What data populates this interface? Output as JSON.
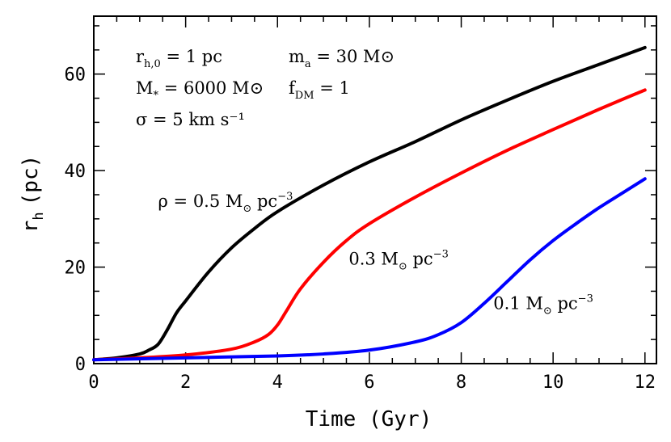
{
  "chart_data": {
    "type": "line",
    "xlabel": "Time (Gyr)",
    "ylabel": {
      "main": "r",
      "sub": "h",
      "unit": "(pc)"
    },
    "xlim": [
      0,
      12.25
    ],
    "ylim": [
      0,
      72
    ],
    "x_ticks": [
      "0",
      "2",
      "4",
      "6",
      "8",
      "10",
      "12"
    ],
    "y_ticks": [
      "0",
      "20",
      "40",
      "60"
    ],
    "grid": false,
    "parameters": [
      {
        "main": "r",
        "sub": "h,0",
        "rest": " = 1 pc"
      },
      {
        "main": "M",
        "sub": "*",
        "rest": " = 6000 M⊙"
      },
      {
        "main": "σ",
        "sub": "",
        "rest": " = 5 km s⁻¹"
      },
      {
        "main": "m",
        "sub": "a",
        "rest": " = 30 M⊙"
      },
      {
        "main": "f",
        "sub": "DM",
        "rest": " = 1"
      }
    ],
    "series": [
      {
        "name": "ρ = 0.5 M⊙ pc⁻³",
        "color": "#000000",
        "x": [
          0,
          0.5,
          1.0,
          1.2,
          1.4,
          1.6,
          1.8,
          2.0,
          2.5,
          3.0,
          3.5,
          4.0,
          5.0,
          6.0,
          7.0,
          8.0,
          9.0,
          10.0,
          11.0,
          12.0
        ],
        "y": [
          0.8,
          1.2,
          2.0,
          2.8,
          4.0,
          7.0,
          10.5,
          13.0,
          19.0,
          24.0,
          28.0,
          31.5,
          37.0,
          41.8,
          46.0,
          50.5,
          54.6,
          58.5,
          62.0,
          65.5
        ]
      },
      {
        "name": "0.3 M⊙ pc⁻³",
        "color": "#ff0000",
        "x": [
          0,
          1.0,
          2.0,
          3.0,
          3.5,
          3.8,
          4.0,
          4.2,
          4.5,
          5.0,
          5.5,
          6.0,
          7.0,
          8.0,
          9.0,
          10.0,
          11.0,
          12.0
        ],
        "y": [
          0.8,
          1.2,
          1.8,
          3.0,
          4.5,
          6.0,
          8.0,
          11.0,
          15.5,
          21.0,
          25.5,
          29.0,
          34.5,
          39.5,
          44.2,
          48.5,
          52.7,
          56.7
        ]
      },
      {
        "name": "0.1 M⊙ pc⁻³",
        "color": "#0000ff",
        "x": [
          0,
          2.0,
          4.0,
          5.0,
          6.0,
          7.0,
          7.5,
          8.0,
          8.5,
          9.0,
          9.5,
          10.0,
          10.5,
          11.0,
          11.5,
          12.0
        ],
        "y": [
          0.8,
          1.2,
          1.6,
          2.0,
          2.8,
          4.5,
          6.0,
          8.5,
          12.5,
          17.0,
          21.5,
          25.5,
          29.0,
          32.3,
          35.3,
          38.3
        ]
      }
    ],
    "curve_labels": [
      {
        "prefix": "ρ = ",
        "value": "0.5 M",
        "sym": "⊙",
        "unit": " pc",
        "exp": "−3",
        "x": 1.4,
        "y": 32.5
      },
      {
        "prefix": "",
        "value": "0.3 M",
        "sym": "⊙",
        "unit": " pc",
        "exp": "−3",
        "x": 5.55,
        "y": 20.5
      },
      {
        "prefix": "",
        "value": "0.1 M",
        "sym": "⊙",
        "unit": " pc",
        "exp": "−3",
        "x": 8.7,
        "y": 11.3
      }
    ]
  }
}
